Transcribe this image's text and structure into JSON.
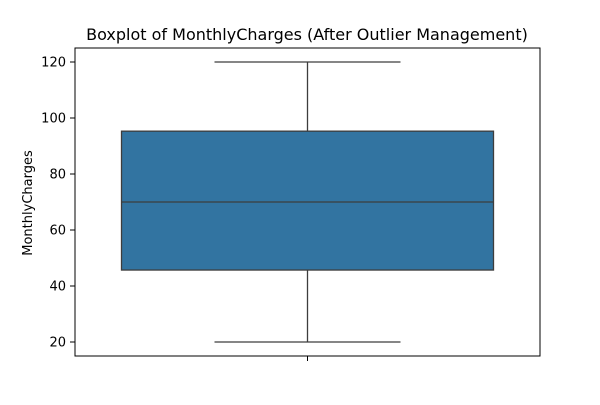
{
  "chart_data": {
    "type": "boxplot",
    "title": "Boxplot of MonthlyCharges (After Outlier Management)",
    "xlabel": "",
    "ylabel": "MonthlyCharges",
    "ylim": [
      15,
      125
    ],
    "yticks": [
      20,
      40,
      60,
      80,
      100,
      120
    ],
    "grid": false,
    "box": {
      "min": 20,
      "q1": 45.7,
      "median": 70,
      "q3": 95.3,
      "max": 120,
      "color": "#3274a1",
      "line_color": "#3d3d3d"
    }
  }
}
